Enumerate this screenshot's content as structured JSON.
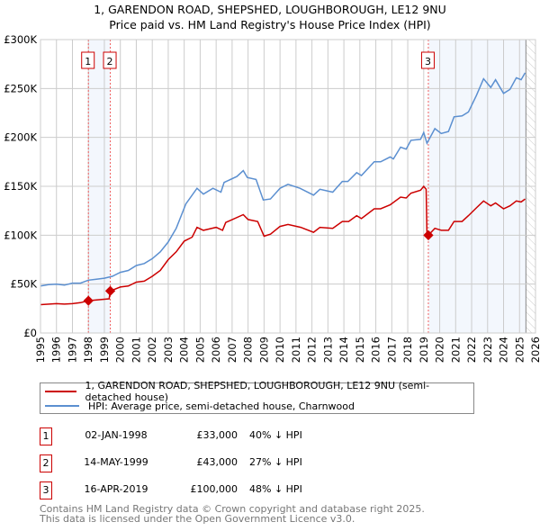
{
  "chart_data": {
    "type": "line",
    "title": "1, GARENDON ROAD, SHEPSHED, LOUGHBOROUGH, LE12 9NU",
    "subtitle": "Price paid vs. HM Land Registry's House Price Index (HPI)",
    "xlim": [
      1995,
      2026
    ],
    "ylim": [
      0,
      300000
    ],
    "x_ticks": [
      "1995",
      "1996",
      "1997",
      "1998",
      "1999",
      "2000",
      "2001",
      "2002",
      "2003",
      "2004",
      "2005",
      "2006",
      "2007",
      "2008",
      "2009",
      "2010",
      "2011",
      "2012",
      "2013",
      "2014",
      "2015",
      "2016",
      "2017",
      "2018",
      "2019",
      "2020",
      "2021",
      "2022",
      "2023",
      "2024",
      "2025",
      "2026"
    ],
    "y_ticks": [
      {
        "v": 0,
        "label": "£0"
      },
      {
        "v": 50000,
        "label": "£50K"
      },
      {
        "v": 100000,
        "label": "£100K"
      },
      {
        "v": 150000,
        "label": "£150K"
      },
      {
        "v": 200000,
        "label": "£200K"
      },
      {
        "v": 250000,
        "label": "£250K"
      },
      {
        "v": 300000,
        "label": "£300K"
      }
    ],
    "grid": true,
    "forecast_start": 2025.4,
    "series": [
      {
        "name": "1, GARENDON ROAD, SHEPSHED, LOUGHBOROUGH, LE12 9NU (semi-detached house)",
        "color": "#cc0000",
        "points": [
          [
            1995,
            29
          ],
          [
            1996,
            30
          ],
          [
            1996.5,
            29.5
          ],
          [
            1997,
            30
          ],
          [
            1997.5,
            31
          ],
          [
            1998,
            33
          ],
          [
            1998.6,
            34
          ],
          [
            1999.3,
            35
          ],
          [
            1999.37,
            43
          ],
          [
            2000,
            47
          ],
          [
            2000.5,
            48
          ],
          [
            2001,
            52
          ],
          [
            2001.5,
            53
          ],
          [
            2002,
            58
          ],
          [
            2002.5,
            64
          ],
          [
            2003,
            75
          ],
          [
            2003.5,
            83
          ],
          [
            2004,
            94
          ],
          [
            2004.5,
            98
          ],
          [
            2004.8,
            108
          ],
          [
            2005.2,
            105
          ],
          [
            2006,
            108
          ],
          [
            2006.4,
            105
          ],
          [
            2006.6,
            113
          ],
          [
            2007.7,
            121
          ],
          [
            2008,
            116
          ],
          [
            2008.6,
            114
          ],
          [
            2009,
            99
          ],
          [
            2009.4,
            101
          ],
          [
            2010,
            109
          ],
          [
            2010.5,
            111
          ],
          [
            2011.3,
            108
          ],
          [
            2012.1,
            103
          ],
          [
            2012.5,
            108
          ],
          [
            2013.3,
            107
          ],
          [
            2013.9,
            114
          ],
          [
            2014.3,
            114
          ],
          [
            2014.8,
            120
          ],
          [
            2015.1,
            117
          ],
          [
            2015.9,
            127
          ],
          [
            2016.3,
            127
          ],
          [
            2016.9,
            131
          ],
          [
            2017.55,
            139
          ],
          [
            2017.9,
            138
          ],
          [
            2018.2,
            143
          ],
          [
            2018.8,
            146
          ],
          [
            2019.0,
            150
          ],
          [
            2019.15,
            147
          ],
          [
            2019.2,
            100
          ],
          [
            2019.29,
            100
          ],
          [
            2019.7,
            107
          ],
          [
            2020.1,
            105
          ],
          [
            2020.55,
            105
          ],
          [
            2020.9,
            114
          ],
          [
            2021.4,
            114
          ],
          [
            2021.8,
            120
          ],
          [
            2022.3,
            128
          ],
          [
            2022.75,
            135
          ],
          [
            2023.2,
            130
          ],
          [
            2023.5,
            133
          ],
          [
            2024,
            127
          ],
          [
            2024.4,
            130
          ],
          [
            2024.8,
            135
          ],
          [
            2025.1,
            134
          ],
          [
            2025.35,
            137
          ]
        ]
      },
      {
        "name": "HPI: Average price, semi-detached house, Charnwood",
        "color": "#5b8fd0",
        "points": [
          [
            1995,
            48
          ],
          [
            1995.5,
            49.5
          ],
          [
            1996,
            50
          ],
          [
            1996.5,
            49
          ],
          [
            1997,
            51
          ],
          [
            1997.5,
            51
          ],
          [
            1998,
            54
          ],
          [
            1998.5,
            55
          ],
          [
            1999,
            56
          ],
          [
            1999.5,
            58
          ],
          [
            2000,
            62
          ],
          [
            2000.5,
            64
          ],
          [
            2001,
            69
          ],
          [
            2001.5,
            71
          ],
          [
            2002,
            76
          ],
          [
            2002.5,
            83
          ],
          [
            2003,
            93
          ],
          [
            2003.5,
            107
          ],
          [
            2004.1,
            132
          ],
          [
            2004.8,
            148
          ],
          [
            2005.2,
            142
          ],
          [
            2005.8,
            148
          ],
          [
            2006.3,
            144
          ],
          [
            2006.5,
            154
          ],
          [
            2007.3,
            160
          ],
          [
            2007.7,
            166
          ],
          [
            2007.95,
            159
          ],
          [
            2008.5,
            157
          ],
          [
            2008.95,
            136
          ],
          [
            2009.4,
            137
          ],
          [
            2010,
            148
          ],
          [
            2010.5,
            152
          ],
          [
            2011.25,
            148
          ],
          [
            2012.1,
            141
          ],
          [
            2012.5,
            147
          ],
          [
            2013.3,
            144
          ],
          [
            2013.9,
            155
          ],
          [
            2014.25,
            155
          ],
          [
            2014.8,
            164
          ],
          [
            2015.1,
            161
          ],
          [
            2015.9,
            175
          ],
          [
            2016.3,
            175
          ],
          [
            2016.9,
            180
          ],
          [
            2017.1,
            178
          ],
          [
            2017.55,
            190
          ],
          [
            2017.9,
            188
          ],
          [
            2018.2,
            197
          ],
          [
            2018.8,
            198
          ],
          [
            2019,
            205
          ],
          [
            2019.2,
            194
          ],
          [
            2019.7,
            209
          ],
          [
            2020.1,
            204
          ],
          [
            2020.55,
            206
          ],
          [
            2020.9,
            221
          ],
          [
            2021.4,
            222
          ],
          [
            2021.8,
            226
          ],
          [
            2022.3,
            243
          ],
          [
            2022.75,
            260
          ],
          [
            2023.2,
            251
          ],
          [
            2023.5,
            259
          ],
          [
            2024,
            245
          ],
          [
            2024.4,
            249
          ],
          [
            2024.8,
            261
          ],
          [
            2025.1,
            259
          ],
          [
            2025.35,
            266
          ]
        ]
      }
    ],
    "sales": [
      {
        "id": "1",
        "x": 1998.0,
        "y": 33000,
        "date": "02-JAN-1998",
        "price": "£33,000",
        "hpi": "40% ↓ HPI"
      },
      {
        "id": "2",
        "x": 1999.37,
        "y": 43000,
        "date": "14-MAY-1999",
        "price": "£43,000",
        "hpi": "27% ↓ HPI"
      },
      {
        "id": "3",
        "x": 2019.29,
        "y": 100000,
        "date": "16-APR-2019",
        "price": "£100,000",
        "hpi": "48% ↓ HPI"
      }
    ],
    "legend_position": "bottom"
  },
  "footer": {
    "line1": "Contains HM Land Registry data © Crown copyright and database right 2025.",
    "line2": "This data is licensed under the Open Government Licence v3.0."
  }
}
